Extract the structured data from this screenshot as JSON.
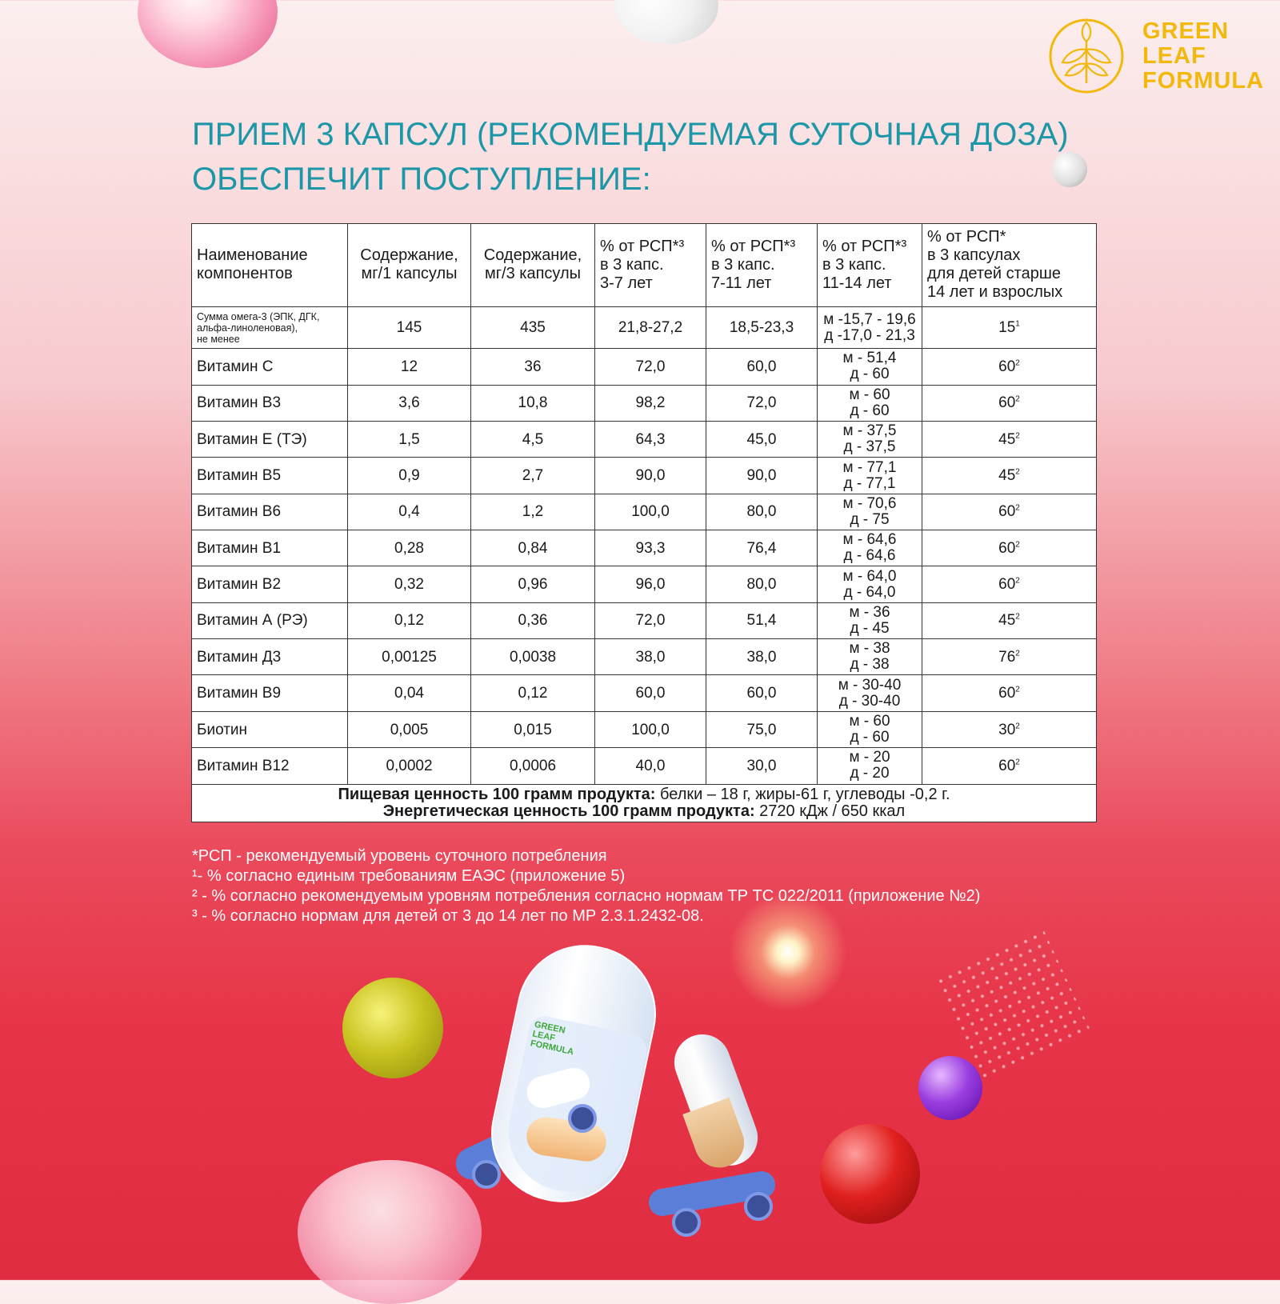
{
  "brand": {
    "logo_lines": [
      "GREEN",
      "LEAF",
      "FORMULA"
    ],
    "color": "#f2b90c"
  },
  "headline": {
    "line1": "ПРИЕМ 3 КАПСУЛ (РЕКОМЕНДУЕМАЯ СУТОЧНАЯ ДОЗА)",
    "line2": "ОБЕСПЕЧИТ ПОСТУПЛЕНИЕ:",
    "color": "#1c97a7"
  },
  "table": {
    "headers": {
      "name": [
        "Наименование",
        "компонентов"
      ],
      "per1": [
        "Содержание,",
        "мг/1 капсулы"
      ],
      "per3": [
        "Содержание,",
        "мг/3 капсулы"
      ],
      "pct_3_7": [
        "% от РСП*³",
        "в 3 капс.",
        "3-7 лет"
      ],
      "pct_7_11": [
        "% от РСП*³",
        "в 3 капс.",
        "7-11 лет"
      ],
      "pct_11_14": [
        "% от РСП*³",
        "в 3 капс.",
        "11-14 лет"
      ],
      "pct_adult": [
        "% от РСП*",
        "в 3 капсулах",
        "для детей старше",
        "14 лет и взрослых"
      ]
    },
    "omega": {
      "name": [
        "Сумма омега-3 (ЭПК, ДГК,",
        "альфа-линоленовая),",
        "не менее"
      ],
      "per1": "145",
      "per3": "435",
      "pct_3_7": "21,8-27,2",
      "pct_7_11": "18,5-23,3",
      "pct_11_14": [
        "м -15,7 - 19,6",
        "д -17,0 - 21,3"
      ],
      "pct_adult": "15",
      "adult_note": "1"
    },
    "rows": [
      {
        "name": "Витамин С",
        "per1": "12",
        "per3": "36",
        "pct_3_7": "72,0",
        "pct_7_11": "60,0",
        "m": "м - 51,4",
        "f": "д - 60",
        "adult": "60",
        "note": "2"
      },
      {
        "name": "Витамин В3",
        "per1": "3,6",
        "per3": "10,8",
        "pct_3_7": "98,2",
        "pct_7_11": "72,0",
        "m": "м - 60",
        "f": "д - 60",
        "adult": "60",
        "note": "2"
      },
      {
        "name": "Витамин Е (ТЭ)",
        "per1": "1,5",
        "per3": "4,5",
        "pct_3_7": "64,3",
        "pct_7_11": "45,0",
        "m": "м - 37,5",
        "f": "д - 37,5",
        "adult": "45",
        "note": "2"
      },
      {
        "name": "Витамин В5",
        "per1": "0,9",
        "per3": "2,7",
        "pct_3_7": "90,0",
        "pct_7_11": "90,0",
        "m": "м - 77,1",
        "f": "д - 77,1",
        "adult": "45",
        "note": "2"
      },
      {
        "name": "Витамин В6",
        "per1": "0,4",
        "per3": "1,2",
        "pct_3_7": "100,0",
        "pct_7_11": "80,0",
        "m": "м - 70,6",
        "f": "д - 75",
        "adult": "60",
        "note": "2"
      },
      {
        "name": "Витамин В1",
        "per1": "0,28",
        "per3": "0,84",
        "pct_3_7": "93,3",
        "pct_7_11": "76,4",
        "m": "м - 64,6",
        "f": "д - 64,6",
        "adult": "60",
        "note": "2"
      },
      {
        "name": "Витамин В2",
        "per1": "0,32",
        "per3": "0,96",
        "pct_3_7": "96,0",
        "pct_7_11": "80,0",
        "m": "м - 64,0",
        "f": "д - 64,0",
        "adult": "60",
        "note": "2"
      },
      {
        "name": "Витамин А (РЭ)",
        "per1": "0,12",
        "per3": "0,36",
        "pct_3_7": "72,0",
        "pct_7_11": "51,4",
        "m": "м - 36",
        "f": "д - 45",
        "adult": "45",
        "note": "2"
      },
      {
        "name": "Витамин Д3",
        "per1": "0,00125",
        "per3": "0,0038",
        "pct_3_7": "38,0",
        "pct_7_11": "38,0",
        "m": "м - 38",
        "f": "д - 38",
        "adult": "76",
        "note": "2"
      },
      {
        "name": "Витамин В9",
        "per1": "0,04",
        "per3": "0,12",
        "pct_3_7": "60,0",
        "pct_7_11": "60,0",
        "m": "м - 30-40",
        "f": "д - 30-40",
        "adult": "60",
        "note": "2"
      },
      {
        "name": "Биотин",
        "per1": "0,005",
        "per3": "0,015",
        "pct_3_7": "100,0",
        "pct_7_11": "75,0",
        "m": "м - 60",
        "f": "д - 60",
        "adult": "30",
        "note": "2"
      },
      {
        "name": "Витамин В12",
        "per1": "0,0002",
        "per3": "0,0006",
        "pct_3_7": "40,0",
        "pct_7_11": "30,0",
        "m": "м - 20",
        "f": "д - 20",
        "adult": "60",
        "note": "2"
      }
    ],
    "footer": {
      "nutrition_label": "Пищевая ценность 100 грамм продукта:",
      "nutrition_value": " белки – 18 г, жиры-61 г, углеводы -0,2 г.",
      "energy_label": "Энергетическая ценность  100 грамм продукта:",
      "energy_value": "  2720 кДж / 650 ккал"
    }
  },
  "footnotes": [
    "*РСП - рекомендуемый уровень суточного потребления",
    "¹- % согласно единым требованиям ЕАЭС (приложение 5)",
    "² - % согласно рекомендуемым уровням потребления согласно нормам ТР ТС 022/2011 (приложение №2)",
    "³ - % согласно нормам для детей от 3 до 14 лет по МР 2.3.1.2432-08."
  ],
  "capsule_logo_lines": [
    "GREEN",
    "LEAF",
    "FORMULA"
  ]
}
